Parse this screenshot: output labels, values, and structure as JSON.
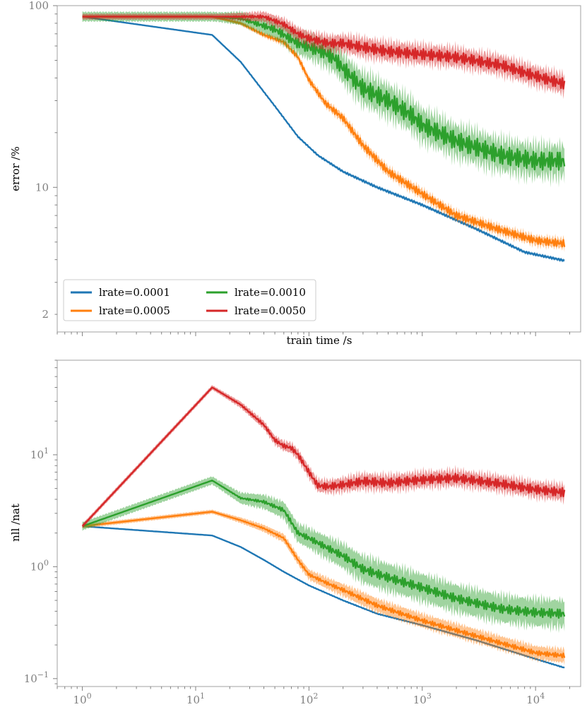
{
  "chart_data": [
    {
      "type": "line",
      "title": "",
      "xlabel": "train time /s",
      "ylabel": "error /%",
      "xscale": "log",
      "yscale": "log",
      "xlim": [
        0.6,
        25000
      ],
      "ylim": [
        1.6,
        100
      ],
      "yticks": [
        {
          "value": 100,
          "label": "100"
        },
        {
          "value": 10,
          "label": "10"
        },
        {
          "value": 2,
          "label": "2"
        }
      ],
      "legend": {
        "placement": "lower-left",
        "columns": 2
      },
      "series": [
        {
          "name": "lrate=0.0001",
          "color": "#1f77b4",
          "band": 0.01,
          "wiggle": 0.005,
          "x": [
            1,
            14,
            25,
            50,
            80,
            120,
            200,
            400,
            1000,
            3000,
            8000,
            18000
          ],
          "y": [
            87,
            69,
            49,
            28,
            19,
            15,
            12.2,
            10.0,
            8.0,
            5.9,
            4.4,
            3.95
          ]
        },
        {
          "name": "lrate=0.0005",
          "color": "#ff7f0e",
          "band": 0.03,
          "wiggle": 0.02,
          "x": [
            1,
            14,
            25,
            40,
            60,
            80,
            100,
            140,
            200,
            300,
            500,
            1000,
            2000,
            5000,
            10000,
            18000
          ],
          "y": [
            87,
            87,
            80,
            69,
            63,
            52,
            39,
            29,
            24,
            17,
            12.2,
            9.2,
            7.0,
            5.8,
            5.1,
            4.9
          ]
        },
        {
          "name": "lrate=0.0010",
          "color": "#2ca02c",
          "band": 0.1,
          "wiggle": 0.05,
          "x": [
            1,
            14,
            25,
            50,
            80,
            100,
            130,
            170,
            200,
            300,
            500,
            800,
            1000,
            2000,
            5000,
            10000,
            18000
          ],
          "y": [
            87,
            87,
            85,
            74,
            62,
            59,
            56,
            51,
            45,
            35,
            30,
            25,
            22,
            18,
            15,
            14,
            14
          ]
        },
        {
          "name": "lrate=0.0050",
          "color": "#d62728",
          "band": 0.06,
          "wiggle": 0.03,
          "x": [
            1,
            14,
            40,
            60,
            80,
            100,
            150,
            200,
            300,
            500,
            1000,
            2000,
            5000,
            10000,
            18000
          ],
          "y": [
            87,
            87,
            87,
            79,
            70,
            66,
            62,
            62,
            59,
            56,
            54,
            52,
            47,
            41,
            37
          ]
        }
      ]
    },
    {
      "type": "line",
      "title": "",
      "xlabel": "",
      "ylabel": "nll /nat",
      "xscale": "log",
      "yscale": "log",
      "xlim": [
        0.6,
        25000
      ],
      "ylim": [
        0.085,
        70
      ],
      "yticks": [
        {
          "value": 10,
          "base": "10",
          "exp": "1"
        },
        {
          "value": 1,
          "base": "10",
          "exp": "0"
        },
        {
          "value": 0.1,
          "base": "10",
          "exp": "−1"
        }
      ],
      "xticks": [
        {
          "value": 1,
          "base": "10",
          "exp": "0"
        },
        {
          "value": 10,
          "base": "10",
          "exp": "1"
        },
        {
          "value": 100,
          "base": "10",
          "exp": "2"
        },
        {
          "value": 1000,
          "base": "10",
          "exp": "3"
        },
        {
          "value": 10000,
          "base": "10",
          "exp": "4"
        }
      ],
      "series": [
        {
          "name": "lrate=0.0001",
          "color": "#1f77b4",
          "band": 0.005,
          "wiggle": 0.003,
          "x": [
            1,
            14,
            25,
            40,
            60,
            100,
            200,
            400,
            1000,
            3000,
            10000,
            18000
          ],
          "y": [
            2.3,
            1.9,
            1.5,
            1.15,
            0.9,
            0.68,
            0.5,
            0.38,
            0.3,
            0.22,
            0.15,
            0.125
          ]
        },
        {
          "name": "lrate=0.0005",
          "color": "#ff7f0e",
          "band": 0.07,
          "wiggle": 0.02,
          "x": [
            1,
            14,
            25,
            40,
            60,
            80,
            100,
            150,
            200,
            400,
            1000,
            3000,
            10000,
            18000
          ],
          "y": [
            2.3,
            3.1,
            2.6,
            2.2,
            1.8,
            1.15,
            0.85,
            0.7,
            0.62,
            0.45,
            0.33,
            0.24,
            0.17,
            0.16
          ]
        },
        {
          "name": "lrate=0.0010",
          "color": "#2ca02c",
          "band": 0.14,
          "wiggle": 0.04,
          "x": [
            1,
            14,
            25,
            40,
            60,
            80,
            100,
            150,
            200,
            300,
            500,
            1000,
            2000,
            5000,
            10000,
            18000
          ],
          "y": [
            2.3,
            5.9,
            4.1,
            3.8,
            3.2,
            2.0,
            1.8,
            1.45,
            1.25,
            0.95,
            0.8,
            0.65,
            0.52,
            0.42,
            0.39,
            0.38
          ]
        },
        {
          "name": "lrate=0.0050",
          "color": "#d62728",
          "band": 0.08,
          "wiggle": 0.04,
          "x": [
            1,
            14,
            25,
            40,
            50,
            60,
            70,
            80,
            100,
            120,
            150,
            200,
            300,
            500,
            1000,
            2000,
            5000,
            10000,
            18000
          ],
          "y": [
            2.3,
            40,
            28,
            18.5,
            13.5,
            12.0,
            11.5,
            10.0,
            7.0,
            5.3,
            5.2,
            5.4,
            5.8,
            5.6,
            6.0,
            6.2,
            5.5,
            4.9,
            4.6
          ]
        }
      ]
    }
  ]
}
